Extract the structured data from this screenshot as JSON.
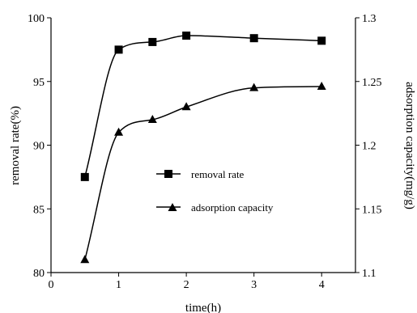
{
  "chart_data": {
    "type": "line",
    "xlabel": "time(h)",
    "ylabel_left": "removal rate(%)",
    "ylabel_right": "adsorption capacity(mg/g)",
    "xlim": [
      0,
      4.5
    ],
    "ylim_left": [
      80,
      100
    ],
    "ylim_right": [
      1.1,
      1.3
    ],
    "x_ticks": [
      "0",
      "1",
      "2",
      "3",
      "4"
    ],
    "y_left_ticks": [
      "80",
      "85",
      "90",
      "95",
      "100"
    ],
    "y_right_ticks": [
      "1.1",
      "1.15",
      "1.2",
      "1.25",
      "1.3"
    ],
    "grid": false,
    "legend_position": "center",
    "series": [
      {
        "name": "removal rate",
        "axis": "left",
        "marker": "square",
        "x": [
          0.5,
          1,
          1.5,
          2,
          3,
          4
        ],
        "values": [
          87.5,
          97.5,
          98.1,
          98.6,
          98.4,
          98.2
        ]
      },
      {
        "name": "adsorption capacity",
        "axis": "right",
        "marker": "triangle",
        "x": [
          0.5,
          1,
          1.5,
          2,
          3,
          4
        ],
        "values": [
          1.11,
          1.21,
          1.22,
          1.23,
          1.245,
          1.246
        ]
      }
    ]
  }
}
